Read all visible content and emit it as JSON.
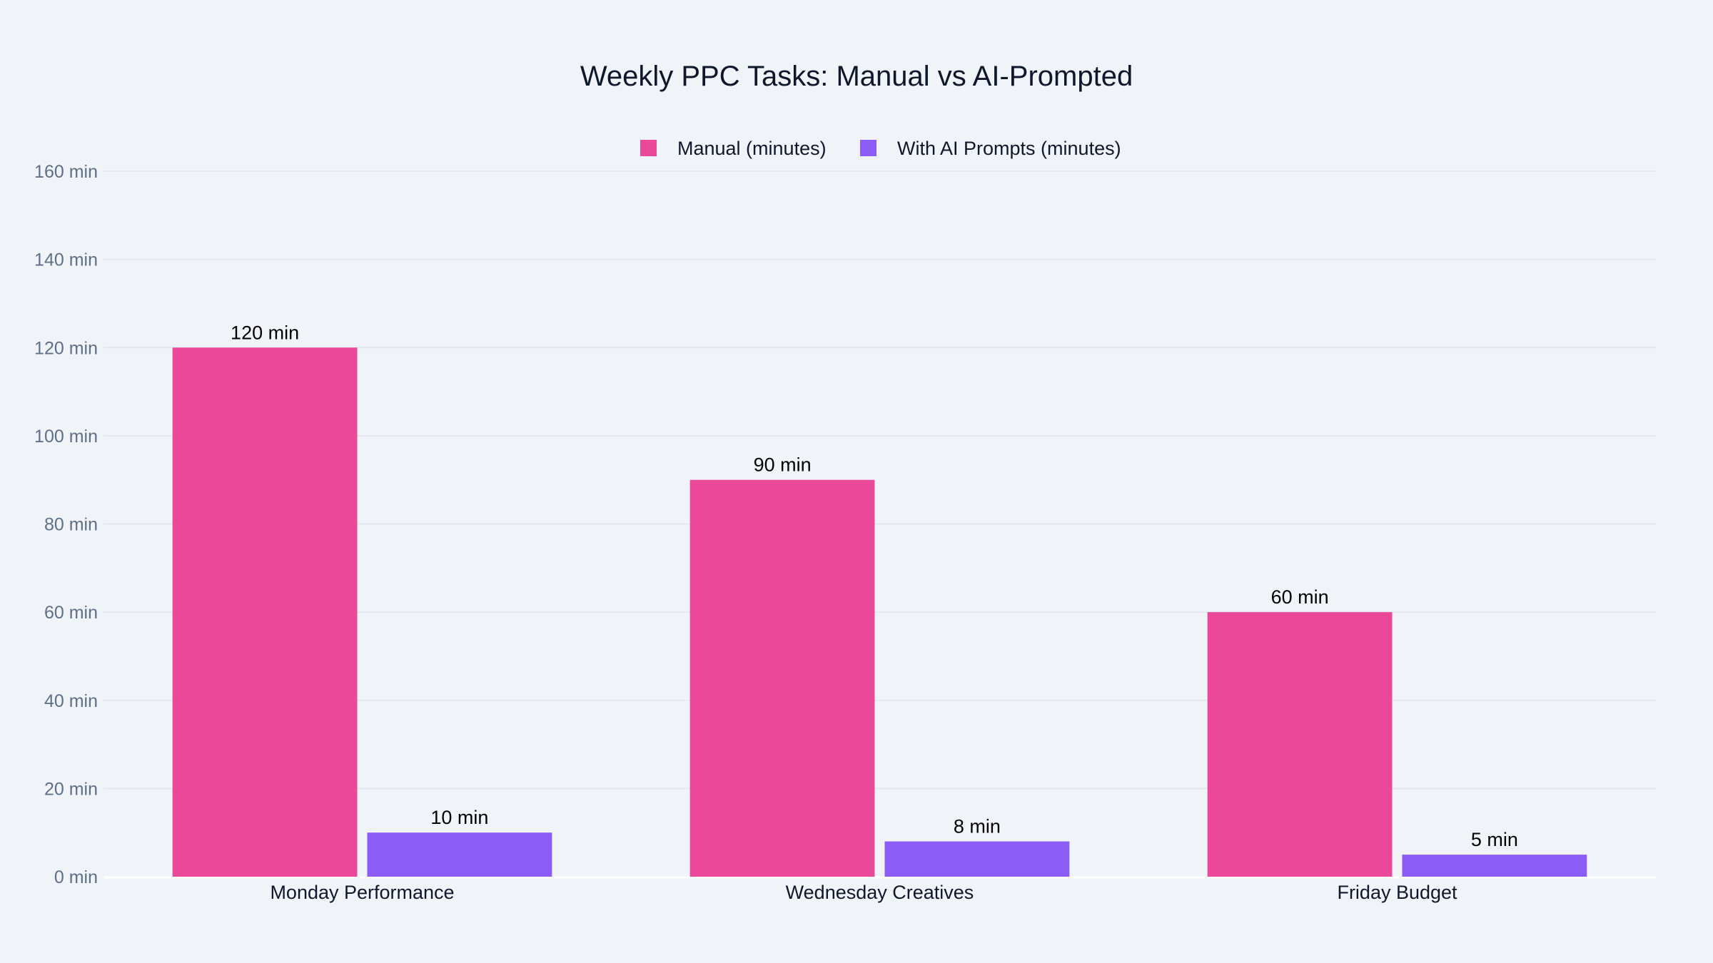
{
  "chart_data": {
    "type": "bar",
    "title": "Weekly PPC Tasks: Manual vs AI-Prompted",
    "xlabel": "",
    "ylabel": "",
    "categories": [
      "Monday Performance",
      "Wednesday Creatives",
      "Friday Budget"
    ],
    "series": [
      {
        "name": "Manual (minutes)",
        "values": [
          120,
          90,
          60
        ],
        "color": "#ec4899",
        "labels": [
          "120 min",
          "90 min",
          "60 min"
        ]
      },
      {
        "name": "With AI Prompts (minutes)",
        "values": [
          10,
          8,
          5
        ],
        "color": "#8b5cf6",
        "labels": [
          "10 min",
          "8 min",
          "5 min"
        ]
      }
    ],
    "ylim": [
      0,
      160
    ],
    "yticks": [
      0,
      20,
      40,
      60,
      80,
      100,
      120,
      140,
      160
    ],
    "ytick_labels": [
      "0 min",
      "20 min",
      "40 min",
      "60 min",
      "80 min",
      "100 min",
      "120 min",
      "140 min",
      "160 min"
    ],
    "grid": true,
    "legend_position": "top-center",
    "background": "#f0f4f9"
  }
}
